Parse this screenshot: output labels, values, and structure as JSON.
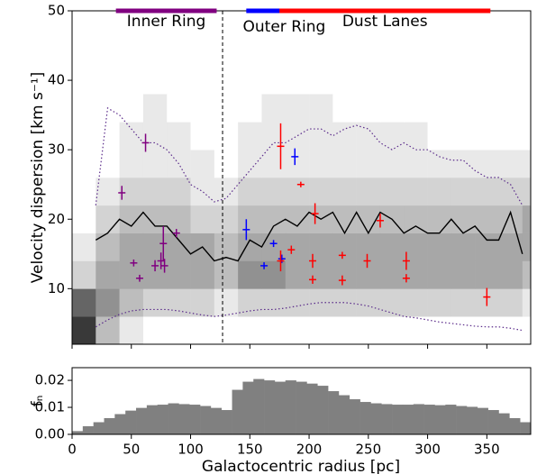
{
  "chart_data": [
    {
      "type": "errorbar",
      "ylabel": "Velocity dispersion [km s⁻¹]",
      "xlim": [
        0,
        387
      ],
      "ylim": [
        2,
        50
      ],
      "xticks": [
        0,
        50,
        100,
        150,
        200,
        250,
        300,
        350
      ],
      "yticks": [
        10,
        20,
        30,
        40,
        50
      ],
      "vline": 127,
      "heatmap": {
        "xbins": [
          0,
          20,
          40,
          60,
          80,
          100,
          120,
          140,
          160,
          180,
          200,
          220,
          240,
          260,
          280,
          300,
          320,
          340,
          360,
          380,
          387
        ],
        "ybins": [
          2,
          6,
          10,
          14,
          18,
          22,
          26,
          30,
          34,
          38
        ],
        "z": [
          [
            9,
            3,
            1,
            0,
            0,
            0,
            0,
            0,
            0,
            0,
            0,
            0,
            0,
            0,
            0,
            0,
            0,
            0,
            0,
            0
          ],
          [
            7,
            5,
            3,
            2,
            2,
            2,
            1,
            2,
            2,
            2,
            2,
            2,
            2,
            2,
            2,
            2,
            2,
            2,
            2,
            1
          ],
          [
            2,
            4,
            4,
            4,
            4,
            4,
            3,
            5,
            5,
            4,
            4,
            4,
            4,
            4,
            4,
            4,
            4,
            4,
            4,
            3
          ],
          [
            1,
            3,
            4,
            4,
            4,
            4,
            3,
            4,
            4,
            4,
            4,
            4,
            4,
            4,
            4,
            4,
            4,
            4,
            4,
            4
          ],
          [
            0,
            2,
            3,
            3,
            3,
            2,
            2,
            3,
            3,
            3,
            3,
            3,
            3,
            3,
            3,
            3,
            3,
            3,
            3,
            4
          ],
          [
            0,
            1,
            2,
            2,
            2,
            1,
            1,
            2,
            2,
            2,
            2,
            2,
            2,
            2,
            2,
            2,
            2,
            2,
            2,
            2
          ],
          [
            0,
            0,
            1,
            1,
            1,
            1,
            0,
            1,
            1,
            1,
            1,
            1,
            1,
            1,
            1,
            1,
            1,
            1,
            1,
            1
          ],
          [
            0,
            0,
            1,
            1,
            1,
            0,
            0,
            1,
            1,
            1,
            1,
            1,
            1,
            1,
            1,
            0,
            0,
            0,
            0,
            0
          ],
          [
            0,
            0,
            0,
            1,
            0,
            0,
            0,
            0,
            1,
            1,
            1,
            0,
            0,
            0,
            0,
            0,
            0,
            0,
            0,
            0
          ]
        ]
      },
      "lines_x": [
        20,
        30,
        40,
        50,
        60,
        70,
        80,
        90,
        100,
        110,
        120,
        130,
        140,
        150,
        160,
        170,
        180,
        190,
        200,
        210,
        220,
        230,
        240,
        250,
        260,
        270,
        280,
        290,
        300,
        310,
        320,
        330,
        340,
        350,
        360,
        370,
        380
      ],
      "lines": [
        {
          "style": "solid",
          "color": "#000000",
          "values": [
            17,
            18,
            20,
            19,
            21,
            19,
            19,
            17,
            15,
            16,
            14,
            14.5,
            14,
            17,
            16,
            19,
            20,
            19,
            21,
            20,
            21,
            18,
            21,
            18,
            21,
            20,
            18,
            19,
            18,
            18,
            20,
            18,
            19,
            17,
            17,
            21,
            15
          ]
        },
        {
          "style": "dotted",
          "color": "#5a2a8a",
          "values": [
            22,
            36,
            35,
            33,
            31,
            31,
            30,
            28,
            25,
            24,
            22.5,
            23,
            25,
            27,
            29,
            31,
            31,
            32,
            33,
            33,
            32,
            33,
            33.5,
            33,
            31,
            30,
            31,
            30,
            30,
            29,
            28.5,
            28.5,
            27,
            26,
            26,
            25,
            22
          ]
        },
        {
          "style": "dotted",
          "color": "#5a2a8a",
          "values": [
            4.5,
            5.5,
            6.3,
            6.8,
            7,
            7,
            7,
            6.8,
            6.5,
            6.2,
            6,
            6.2,
            6.5,
            6.8,
            7,
            7,
            7.2,
            7.5,
            7.8,
            8,
            8,
            8,
            7.8,
            7.5,
            7,
            6.5,
            6,
            5.8,
            5.5,
            5.2,
            5,
            4.8,
            4.6,
            4.5,
            4.5,
            4.3,
            4
          ]
        }
      ],
      "series": [
        {
          "name": "Inner Ring",
          "color": "#800080",
          "range": [
            37,
            122
          ],
          "x": [
            42,
            62,
            52,
            57,
            70,
            75,
            77,
            78,
            88
          ],
          "values": [
            23.8,
            31,
            13.7,
            11.5,
            13.3,
            14,
            16.5,
            13.3,
            18
          ],
          "errors": [
            1,
            1.3,
            0.5,
            0.5,
            0.8,
            1.2,
            2.5,
            1,
            0.6
          ]
        },
        {
          "name": "Outer Ring",
          "color": "#0000ff",
          "range": [
            147,
            211
          ],
          "x": [
            147,
            162,
            170,
            177,
            188
          ],
          "values": [
            18.5,
            13.3,
            16.5,
            14.3,
            29
          ],
          "errors": [
            1.5,
            0.5,
            0.5,
            0.6,
            1.2
          ]
        },
        {
          "name": "Dust Lanes",
          "color": "#ff0000",
          "range": [
            175,
            353
          ],
          "x": [
            176,
            176,
            185,
            193,
            203,
            203,
            205,
            228,
            228,
            249,
            260,
            282,
            282,
            350
          ],
          "values": [
            30.5,
            14,
            15.6,
            25,
            14,
            11.3,
            20.8,
            14.8,
            11.2,
            14,
            19.8,
            14,
            11.5,
            8.8
          ],
          "errors": [
            3.3,
            1.5,
            0.6,
            0.4,
            1,
            0.6,
            1.5,
            0.5,
            0.7,
            1,
            1,
            1.3,
            0.6,
            1.3
          ]
        }
      ]
    },
    {
      "type": "histogram",
      "xlabel": "Galactocentric radius [pc]",
      "ylabel": "fₙ",
      "color": "#808080",
      "xlim": [
        0,
        387
      ],
      "ylim": [
        0,
        0.0247
      ],
      "xticks": [
        0,
        50,
        100,
        150,
        200,
        250,
        300,
        350
      ],
      "yticks": [
        {
          "value": 0,
          "label": "0.00"
        },
        {
          "value": 0.01,
          "label": "0.01"
        },
        {
          "value": 0.02,
          "label": "0.02"
        }
      ],
      "bins": [
        0,
        9,
        18,
        27,
        36,
        45,
        54,
        63,
        72,
        81,
        90,
        99,
        108,
        117,
        126,
        135,
        144,
        153,
        162,
        171,
        180,
        189,
        198,
        207,
        216,
        225,
        234,
        243,
        252,
        261,
        270,
        279,
        288,
        297,
        306,
        315,
        324,
        333,
        342,
        351,
        360,
        369,
        378,
        387
      ],
      "values": [
        0.0012,
        0.003,
        0.0045,
        0.006,
        0.0075,
        0.0088,
        0.0098,
        0.0108,
        0.011,
        0.0115,
        0.0112,
        0.011,
        0.0105,
        0.0098,
        0.009,
        0.0165,
        0.0195,
        0.0205,
        0.02,
        0.0195,
        0.02,
        0.0195,
        0.0188,
        0.018,
        0.016,
        0.0145,
        0.013,
        0.012,
        0.0115,
        0.0112,
        0.011,
        0.011,
        0.0112,
        0.011,
        0.0108,
        0.011,
        0.0105,
        0.0102,
        0.0098,
        0.009,
        0.0078,
        0.006,
        0.0045
      ]
    }
  ]
}
